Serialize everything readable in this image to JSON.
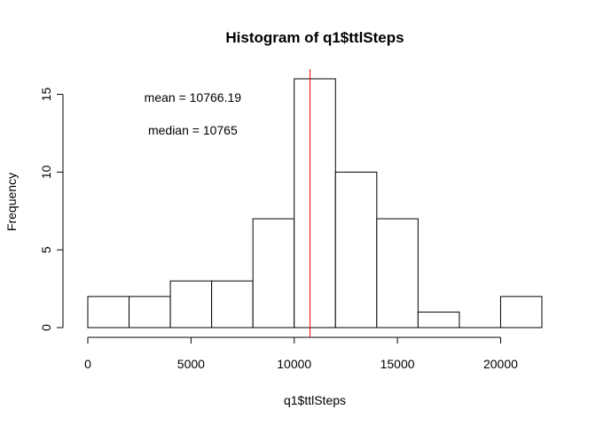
{
  "chart_data": {
    "type": "histogram",
    "title": "Histogram of q1$ttlSteps",
    "xlabel": "q1$ttlSteps",
    "ylabel": "Frequency",
    "bin_width": 2000,
    "bins": [
      {
        "start": 0,
        "end": 2000,
        "count": 2
      },
      {
        "start": 2000,
        "end": 4000,
        "count": 2
      },
      {
        "start": 4000,
        "end": 6000,
        "count": 3
      },
      {
        "start": 6000,
        "end": 8000,
        "count": 3
      },
      {
        "start": 8000,
        "end": 10000,
        "count": 7
      },
      {
        "start": 10000,
        "end": 12000,
        "count": 16
      },
      {
        "start": 12000,
        "end": 14000,
        "count": 10
      },
      {
        "start": 14000,
        "end": 16000,
        "count": 7
      },
      {
        "start": 16000,
        "end": 18000,
        "count": 1
      },
      {
        "start": 18000,
        "end": 20000,
        "count": 0
      },
      {
        "start": 20000,
        "end": 22000,
        "count": 2
      }
    ],
    "xlim": [
      0,
      22000
    ],
    "ylim": [
      0,
      16
    ],
    "x_ticks": [
      0,
      5000,
      10000,
      15000,
      20000
    ],
    "x_tick_labels": [
      "0",
      "5000",
      "10000",
      "15000",
      "20000"
    ],
    "y_ticks": [
      0,
      5,
      10,
      15
    ],
    "y_tick_labels": [
      "0",
      "5",
      "10",
      "15"
    ],
    "mean_line": {
      "value": 10766.19,
      "color": "#ff0000"
    },
    "annotations": [
      {
        "text": "mean =  10766.19",
        "x": 5000,
        "y": 14.8
      },
      {
        "text": "median =  10765",
        "x": 5000,
        "y": 12.7
      }
    ]
  }
}
